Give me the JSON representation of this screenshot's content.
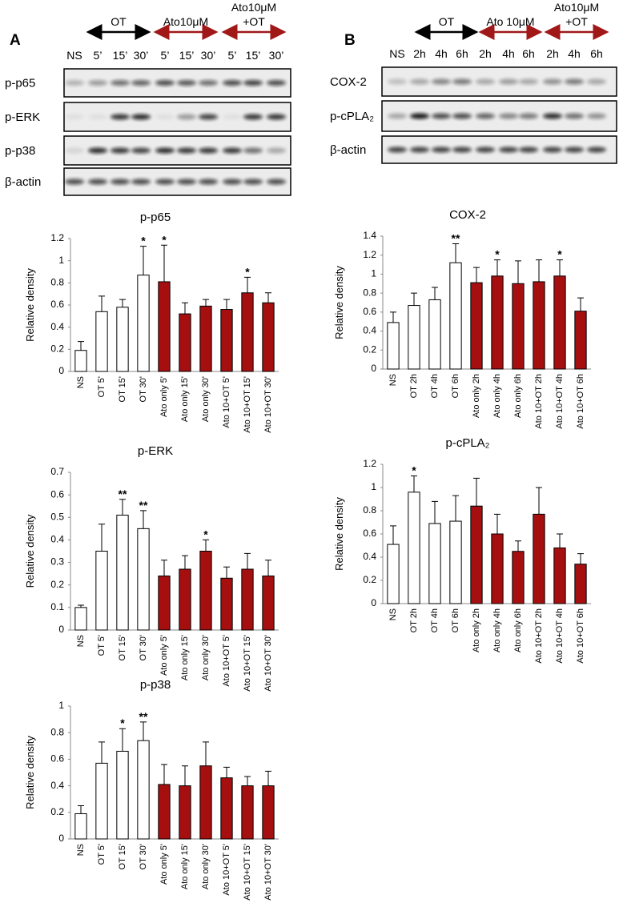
{
  "panel_labels": [
    "A",
    "B"
  ],
  "blots": [
    {
      "groups": [
        {
          "lines": [
            "OT"
          ],
          "color": "#000000"
        },
        {
          "lines": [
            "Ato10μM"
          ],
          "color": "#a01818"
        },
        {
          "lines": [
            "Ato10μM",
            "+OT"
          ],
          "color": "#a01818"
        }
      ],
      "lanes": [
        "NS",
        "5’",
        "15’",
        "30’",
        "5’",
        "15’",
        "30’",
        "5’",
        "15’",
        "30’"
      ],
      "rows": [
        "p-p65",
        "p-ERK",
        "p-p38",
        "β-actin"
      ]
    },
    {
      "groups": [
        {
          "lines": [
            "OT"
          ],
          "color": "#000000"
        },
        {
          "lines": [
            "Ato 10μM"
          ],
          "color": "#a01818"
        },
        {
          "lines": [
            "Ato10μM",
            "+OT"
          ],
          "color": "#a01818"
        }
      ],
      "lanes": [
        "NS",
        "2h",
        "4h",
        "6h",
        "2h",
        "4h",
        "6h",
        "2h",
        "4h",
        "6h"
      ],
      "rows": [
        "COX-2",
        "p-cPLA₂",
        "β-actin"
      ]
    }
  ],
  "chart_data": [
    {
      "type": "bar",
      "title": "p-p65",
      "y_label": "Relative density",
      "categories": [
        "NS",
        "OT 5'",
        "OT 15'",
        "OT 30'",
        "Ato only 5'",
        "Ato only 15'",
        "Ato only 30'",
        "Ato 10+OT 5'",
        "Ato 10+OT 15'",
        "Ato 10+OT 30'"
      ],
      "values": [
        0.19,
        0.54,
        0.58,
        0.87,
        0.81,
        0.52,
        0.59,
        0.56,
        0.71,
        0.62
      ],
      "errors": [
        0.08,
        0.14,
        0.07,
        0.26,
        0.33,
        0.1,
        0.06,
        0.09,
        0.14,
        0.09
      ],
      "significance": [
        null,
        null,
        null,
        "*",
        "*",
        null,
        null,
        null,
        "*",
        null
      ],
      "colors": [
        "#ffffff",
        "#ffffff",
        "#ffffff",
        "#ffffff",
        "#a50f0f",
        "#a50f0f",
        "#a50f0f",
        "#a50f0f",
        "#a50f0f",
        "#a50f0f"
      ],
      "ylim": [
        0,
        1.2
      ],
      "yticks": [
        0,
        0.2,
        0.4,
        0.6,
        0.8,
        1,
        1.2
      ]
    },
    {
      "type": "bar",
      "title": "p-ERK",
      "y_label": "Relative density",
      "categories": [
        "NS",
        "OT 5'",
        "OT 15'",
        "OT 30'",
        "Ato only 5'",
        "Ato only 15'",
        "Ato only 30'",
        "Ato 10+OT 5'",
        "Ato 10+OT 15'",
        "Ato 10+OT 30'"
      ],
      "values": [
        0.1,
        0.35,
        0.51,
        0.45,
        0.24,
        0.27,
        0.35,
        0.23,
        0.27,
        0.24
      ],
      "errors": [
        0.01,
        0.12,
        0.07,
        0.08,
        0.07,
        0.06,
        0.05,
        0.05,
        0.07,
        0.07
      ],
      "significance": [
        null,
        null,
        "**",
        "**",
        null,
        null,
        "*",
        null,
        null,
        null
      ],
      "colors": [
        "#ffffff",
        "#ffffff",
        "#ffffff",
        "#ffffff",
        "#a50f0f",
        "#a50f0f",
        "#a50f0f",
        "#a50f0f",
        "#a50f0f",
        "#a50f0f"
      ],
      "ylim": [
        0,
        0.7
      ],
      "yticks": [
        0,
        0.1,
        0.2,
        0.3,
        0.4,
        0.5,
        0.6,
        0.7
      ]
    },
    {
      "type": "bar",
      "title": "p-p38",
      "y_label": "Relative density",
      "categories": [
        "NS",
        "OT 5'",
        "OT 15'",
        "OT 30'",
        "Ato only 5'",
        "Ato only 15'",
        "Ato only 30'",
        "Ato 10+OT 5'",
        "Ato 10+OT 15'",
        "Ato 10+OT 30'"
      ],
      "values": [
        0.19,
        0.57,
        0.66,
        0.74,
        0.41,
        0.4,
        0.55,
        0.46,
        0.4,
        0.4
      ],
      "errors": [
        0.06,
        0.16,
        0.17,
        0.14,
        0.15,
        0.15,
        0.18,
        0.08,
        0.07,
        0.11
      ],
      "significance": [
        null,
        null,
        "*",
        "**",
        null,
        null,
        null,
        null,
        null,
        null
      ],
      "colors": [
        "#ffffff",
        "#ffffff",
        "#ffffff",
        "#ffffff",
        "#a50f0f",
        "#a50f0f",
        "#a50f0f",
        "#a50f0f",
        "#a50f0f",
        "#a50f0f"
      ],
      "ylim": [
        0,
        1
      ],
      "yticks": [
        0,
        0.2,
        0.4,
        0.6,
        0.8,
        1
      ]
    },
    {
      "type": "bar",
      "title": "COX-2",
      "y_label": "Relative density",
      "categories": [
        "NS",
        "OT 2h",
        "OT 4h",
        "OT 6h",
        "Ato only 2h",
        "Ato only 4h",
        "Ato only 6h",
        "Ato 10+OT 2h",
        "Ato 10+OT 4h",
        "Ato 10+OT 6h"
      ],
      "values": [
        0.49,
        0.67,
        0.73,
        1.12,
        0.91,
        0.98,
        0.9,
        0.92,
        0.98,
        0.61
      ],
      "errors": [
        0.11,
        0.13,
        0.13,
        0.2,
        0.16,
        0.17,
        0.24,
        0.23,
        0.17,
        0.14
      ],
      "significance": [
        null,
        null,
        null,
        "**",
        null,
        "*",
        null,
        null,
        "*",
        null
      ],
      "colors": [
        "#ffffff",
        "#ffffff",
        "#ffffff",
        "#ffffff",
        "#a50f0f",
        "#a50f0f",
        "#a50f0f",
        "#a50f0f",
        "#a50f0f",
        "#a50f0f"
      ],
      "ylim": [
        0,
        1.4
      ],
      "yticks": [
        0,
        0.2,
        0.4,
        0.6,
        0.8,
        1,
        1.2,
        1.4
      ]
    },
    {
      "type": "bar",
      "title": "p-cPLA₂",
      "y_label": "Relative density",
      "categories": [
        "NS",
        "OT 2h",
        "OT 4h",
        "OT 6h",
        "Ato only 2h",
        "Ato only 4h",
        "Ato only 6h",
        "Ato 10+OT 2h",
        "Ato 10+OT 4h",
        "Ato 10+OT 6h"
      ],
      "values": [
        0.51,
        0.96,
        0.69,
        0.71,
        0.84,
        0.6,
        0.45,
        0.77,
        0.48,
        0.34
      ],
      "errors": [
        0.16,
        0.14,
        0.19,
        0.22,
        0.24,
        0.17,
        0.09,
        0.23,
        0.12,
        0.09
      ],
      "significance": [
        null,
        "*",
        null,
        null,
        null,
        null,
        null,
        null,
        null,
        null
      ],
      "colors": [
        "#ffffff",
        "#ffffff",
        "#ffffff",
        "#ffffff",
        "#a50f0f",
        "#a50f0f",
        "#a50f0f",
        "#a50f0f",
        "#a50f0f",
        "#a50f0f"
      ],
      "ylim": [
        0,
        1.2
      ],
      "yticks": [
        0,
        0.2,
        0.4,
        0.6,
        0.8,
        1,
        1.2
      ]
    }
  ]
}
